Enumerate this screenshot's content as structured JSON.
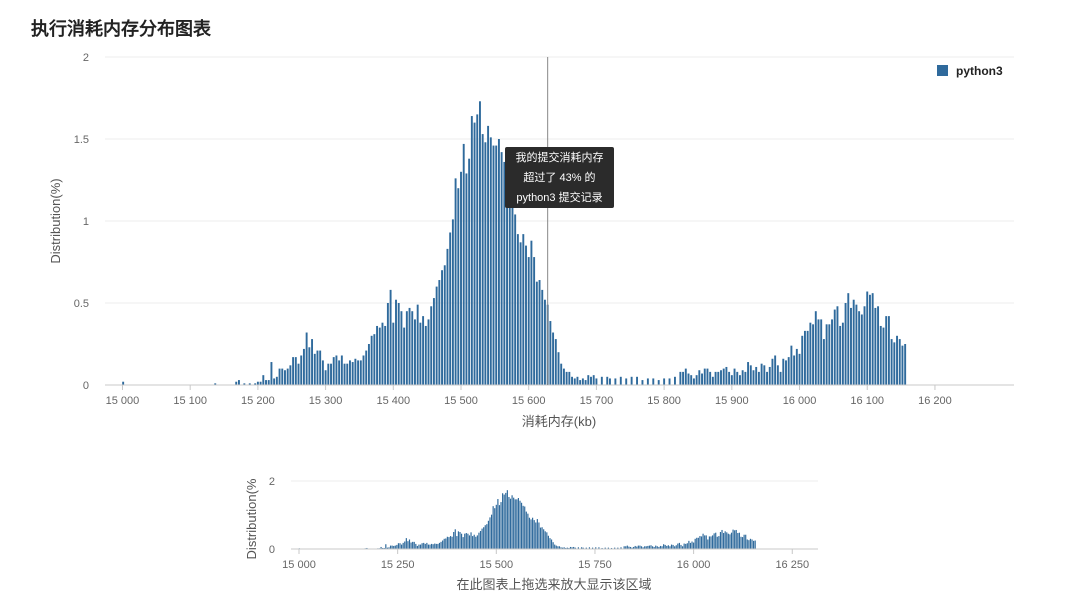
{
  "title": "执行消耗内存分布图表",
  "tooltip": {
    "line1": "我的提交消耗内存",
    "line2": "超过了 43% 的",
    "line3": "python3 提交记录"
  },
  "navigator_caption": "在此图表上拖选来放大显示该区域",
  "colors": {
    "bar": "#2f6a9c",
    "grid": "#ececec",
    "axis": "#c8c8c8",
    "cursor": "#888888"
  },
  "chart_data": [
    {
      "type": "bar",
      "title": "",
      "xlabel": "消耗内存(kb)",
      "ylabel": "Distribution(%)",
      "xlim": [
        14986,
        16302
      ],
      "ylim": [
        0,
        2
      ],
      "x_ticks": [
        15000,
        15100,
        15200,
        15300,
        15400,
        15500,
        15600,
        15700,
        15800,
        15900,
        16000,
        16100,
        16200
      ],
      "x_tick_labels": [
        "15 000",
        "15 100",
        "15 200",
        "15 300",
        "15 400",
        "15 500",
        "15 600",
        "15 700",
        "15 800",
        "15 900",
        "16 000",
        "16 100",
        "16 200"
      ],
      "y_ticks": [
        0,
        0.5,
        1,
        1.5,
        2
      ],
      "y_tick_labels": [
        "0",
        "0.5",
        "1",
        "1.5",
        "2"
      ],
      "legend": {
        "position": "top-right",
        "entries": [
          "python3"
        ]
      },
      "cursor_x": 15628,
      "series": [
        {
          "name": "python3",
          "points": [
            [
              15001,
              0.02
            ],
            [
              15137,
              0.01
            ],
            [
              15168,
              0.02
            ],
            [
              15172,
              0.03
            ],
            [
              15180,
              0.01
            ],
            [
              15188,
              0.01
            ],
            [
              15196,
              0.01
            ],
            [
              15200,
              0.02
            ],
            [
              15204,
              0.02
            ],
            [
              15208,
              0.06
            ],
            [
              15212,
              0.03
            ],
            [
              15216,
              0.03
            ],
            [
              15220,
              0.14
            ],
            [
              15224,
              0.04
            ],
            [
              15228,
              0.05
            ],
            [
              15232,
              0.1
            ],
            [
              15236,
              0.1
            ],
            [
              15240,
              0.09
            ],
            [
              15244,
              0.1
            ],
            [
              15248,
              0.12
            ],
            [
              15252,
              0.17
            ],
            [
              15256,
              0.17
            ],
            [
              15260,
              0.13
            ],
            [
              15264,
              0.18
            ],
            [
              15268,
              0.22
            ],
            [
              15272,
              0.32
            ],
            [
              15276,
              0.23
            ],
            [
              15280,
              0.28
            ],
            [
              15284,
              0.19
            ],
            [
              15288,
              0.21
            ],
            [
              15292,
              0.21
            ],
            [
              15296,
              0.15
            ],
            [
              15300,
              0.09
            ],
            [
              15304,
              0.13
            ],
            [
              15308,
              0.13
            ],
            [
              15312,
              0.17
            ],
            [
              15316,
              0.18
            ],
            [
              15320,
              0.15
            ],
            [
              15324,
              0.18
            ],
            [
              15328,
              0.13
            ],
            [
              15332,
              0.13
            ],
            [
              15336,
              0.15
            ],
            [
              15340,
              0.14
            ],
            [
              15344,
              0.16
            ],
            [
              15348,
              0.15
            ],
            [
              15352,
              0.15
            ],
            [
              15356,
              0.18
            ],
            [
              15360,
              0.21
            ],
            [
              15364,
              0.25
            ],
            [
              15368,
              0.3
            ],
            [
              15372,
              0.31
            ],
            [
              15376,
              0.36
            ],
            [
              15380,
              0.35
            ],
            [
              15384,
              0.38
            ],
            [
              15388,
              0.36
            ],
            [
              15392,
              0.5
            ],
            [
              15396,
              0.58
            ],
            [
              15400,
              0.38
            ],
            [
              15404,
              0.52
            ],
            [
              15408,
              0.5
            ],
            [
              15412,
              0.45
            ],
            [
              15416,
              0.35
            ],
            [
              15420,
              0.45
            ],
            [
              15424,
              0.47
            ],
            [
              15428,
              0.45
            ],
            [
              15432,
              0.4
            ],
            [
              15436,
              0.49
            ],
            [
              15440,
              0.38
            ],
            [
              15444,
              0.42
            ],
            [
              15448,
              0.36
            ],
            [
              15452,
              0.4
            ],
            [
              15456,
              0.48
            ],
            [
              15460,
              0.53
            ],
            [
              15464,
              0.6
            ],
            [
              15468,
              0.64
            ],
            [
              15472,
              0.7
            ],
            [
              15476,
              0.73
            ],
            [
              15480,
              0.83
            ],
            [
              15484,
              0.93
            ],
            [
              15488,
              1.01
            ],
            [
              15492,
              1.26
            ],
            [
              15496,
              1.2
            ],
            [
              15500,
              1.3
            ],
            [
              15504,
              1.47
            ],
            [
              15508,
              1.29
            ],
            [
              15512,
              1.38
            ],
            [
              15516,
              1.64
            ],
            [
              15520,
              1.6
            ],
            [
              15524,
              1.65
            ],
            [
              15528,
              1.73
            ],
            [
              15532,
              1.53
            ],
            [
              15536,
              1.48
            ],
            [
              15540,
              1.58
            ],
            [
              15544,
              1.51
            ],
            [
              15548,
              1.46
            ],
            [
              15552,
              1.46
            ],
            [
              15556,
              1.5
            ],
            [
              15560,
              1.42
            ],
            [
              15564,
              1.36
            ],
            [
              15568,
              1.27
            ],
            [
              15572,
              1.25
            ],
            [
              15576,
              1.1
            ],
            [
              15580,
              1.04
            ],
            [
              15584,
              0.92
            ],
            [
              15588,
              0.87
            ],
            [
              15592,
              0.92
            ],
            [
              15596,
              0.85
            ],
            [
              15600,
              0.78
            ],
            [
              15604,
              0.88
            ],
            [
              15608,
              0.78
            ],
            [
              15612,
              0.63
            ],
            [
              15616,
              0.64
            ],
            [
              15620,
              0.58
            ],
            [
              15624,
              0.52
            ],
            [
              15628,
              0.49
            ],
            [
              15632,
              0.39
            ],
            [
              15636,
              0.32
            ],
            [
              15640,
              0.28
            ],
            [
              15644,
              0.2
            ],
            [
              15648,
              0.13
            ],
            [
              15652,
              0.1
            ],
            [
              15656,
              0.08
            ],
            [
              15660,
              0.08
            ],
            [
              15664,
              0.05
            ],
            [
              15668,
              0.04
            ],
            [
              15672,
              0.05
            ],
            [
              15676,
              0.03
            ],
            [
              15680,
              0.04
            ],
            [
              15684,
              0.03
            ],
            [
              15688,
              0.06
            ],
            [
              15692,
              0.05
            ],
            [
              15696,
              0.06
            ],
            [
              15700,
              0.04
            ],
            [
              15708,
              0.05
            ],
            [
              15716,
              0.05
            ],
            [
              15720,
              0.04
            ],
            [
              15728,
              0.04
            ],
            [
              15736,
              0.05
            ],
            [
              15744,
              0.04
            ],
            [
              15752,
              0.05
            ],
            [
              15760,
              0.05
            ],
            [
              15768,
              0.03
            ],
            [
              15776,
              0.04
            ],
            [
              15784,
              0.04
            ],
            [
              15792,
              0.03
            ],
            [
              15800,
              0.04
            ],
            [
              15808,
              0.04
            ],
            [
              15816,
              0.05
            ],
            [
              15824,
              0.08
            ],
            [
              15828,
              0.08
            ],
            [
              15832,
              0.1
            ],
            [
              15836,
              0.07
            ],
            [
              15840,
              0.06
            ],
            [
              15844,
              0.04
            ],
            [
              15848,
              0.06
            ],
            [
              15852,
              0.09
            ],
            [
              15856,
              0.07
            ],
            [
              15860,
              0.1
            ],
            [
              15864,
              0.1
            ],
            [
              15868,
              0.08
            ],
            [
              15872,
              0.05
            ],
            [
              15876,
              0.08
            ],
            [
              15880,
              0.08
            ],
            [
              15884,
              0.09
            ],
            [
              15888,
              0.1
            ],
            [
              15892,
              0.11
            ],
            [
              15896,
              0.08
            ],
            [
              15900,
              0.06
            ],
            [
              15904,
              0.1
            ],
            [
              15908,
              0.08
            ],
            [
              15912,
              0.06
            ],
            [
              15916,
              0.09
            ],
            [
              15920,
              0.08
            ],
            [
              15924,
              0.14
            ],
            [
              15928,
              0.12
            ],
            [
              15932,
              0.09
            ],
            [
              15936,
              0.11
            ],
            [
              15940,
              0.08
            ],
            [
              15944,
              0.13
            ],
            [
              15948,
              0.12
            ],
            [
              15952,
              0.08
            ],
            [
              15956,
              0.11
            ],
            [
              15960,
              0.16
            ],
            [
              15964,
              0.18
            ],
            [
              15968,
              0.12
            ],
            [
              15972,
              0.08
            ],
            [
              15976,
              0.16
            ],
            [
              15980,
              0.15
            ],
            [
              15984,
              0.17
            ],
            [
              15988,
              0.24
            ],
            [
              15992,
              0.18
            ],
            [
              15996,
              0.22
            ],
            [
              16000,
              0.19
            ],
            [
              16004,
              0.3
            ],
            [
              16008,
              0.33
            ],
            [
              16012,
              0.33
            ],
            [
              16016,
              0.38
            ],
            [
              16020,
              0.37
            ],
            [
              16024,
              0.45
            ],
            [
              16028,
              0.4
            ],
            [
              16032,
              0.4
            ],
            [
              16036,
              0.28
            ],
            [
              16040,
              0.37
            ],
            [
              16044,
              0.37
            ],
            [
              16048,
              0.4
            ],
            [
              16052,
              0.46
            ],
            [
              16056,
              0.48
            ],
            [
              16060,
              0.36
            ],
            [
              16064,
              0.38
            ],
            [
              16068,
              0.5
            ],
            [
              16072,
              0.56
            ],
            [
              16076,
              0.47
            ],
            [
              16080,
              0.52
            ],
            [
              16084,
              0.49
            ],
            [
              16088,
              0.45
            ],
            [
              16092,
              0.43
            ],
            [
              16096,
              0.48
            ],
            [
              16100,
              0.57
            ],
            [
              16104,
              0.55
            ],
            [
              16108,
              0.56
            ],
            [
              16112,
              0.47
            ],
            [
              16116,
              0.48
            ],
            [
              16120,
              0.36
            ],
            [
              16124,
              0.35
            ],
            [
              16128,
              0.42
            ],
            [
              16132,
              0.42
            ],
            [
              16136,
              0.28
            ],
            [
              16140,
              0.26
            ],
            [
              16144,
              0.3
            ],
            [
              16148,
              0.28
            ],
            [
              16152,
              0.24
            ],
            [
              16156,
              0.25
            ]
          ]
        }
      ]
    },
    {
      "type": "bar",
      "title": "",
      "xlabel": "",
      "ylabel": "Distribution(%",
      "xlim": [
        15000,
        16300
      ],
      "ylim": [
        0,
        2
      ],
      "x_ticks": [
        15000,
        15250,
        15500,
        15750,
        16000,
        16250
      ],
      "x_tick_labels": [
        "15 000",
        "15 250",
        "15 500",
        "15 750",
        "16 000",
        "16 250"
      ],
      "y_ticks": [
        0,
        2
      ],
      "y_tick_labels": [
        "0",
        "2"
      ],
      "series_ref": "python3"
    }
  ]
}
